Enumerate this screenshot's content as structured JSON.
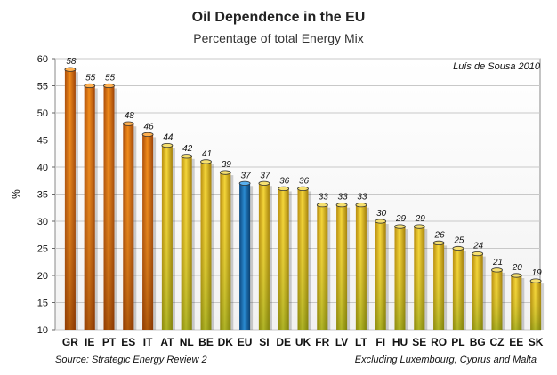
{
  "chart_data": {
    "type": "bar",
    "title": "Oil Dependence in the EU",
    "subtitle": "Percentage of total Energy Mix",
    "ylabel": "%",
    "xlabel": "",
    "ylim": [
      10,
      60
    ],
    "yticks": [
      10,
      15,
      20,
      25,
      30,
      35,
      40,
      45,
      50,
      55,
      60
    ],
    "grid": true,
    "legend": "none",
    "categories": [
      "GR",
      "IE",
      "PT",
      "ES",
      "IT",
      "AT",
      "NL",
      "BE",
      "DK",
      "EU",
      "SI",
      "DE",
      "UK",
      "FR",
      "LV",
      "LT",
      "FI",
      "HU",
      "SE",
      "RO",
      "PL",
      "BG",
      "CZ",
      "EE",
      "SK"
    ],
    "values": [
      58,
      55,
      55,
      48,
      46,
      44,
      42,
      41,
      39,
      37,
      37,
      36,
      36,
      33,
      33,
      33,
      30,
      29,
      29,
      26,
      25,
      24,
      21,
      20,
      19
    ],
    "annotations": {
      "author": "Luís de Sousa  2010",
      "source": "Source: Strategic Energy Review 2",
      "note": "Excluding Luxembourg, Cyprus and Malta"
    },
    "colors": {
      "high": "#e07a10",
      "mid": "#e8c21a",
      "eu": "#1a6fb4"
    }
  }
}
